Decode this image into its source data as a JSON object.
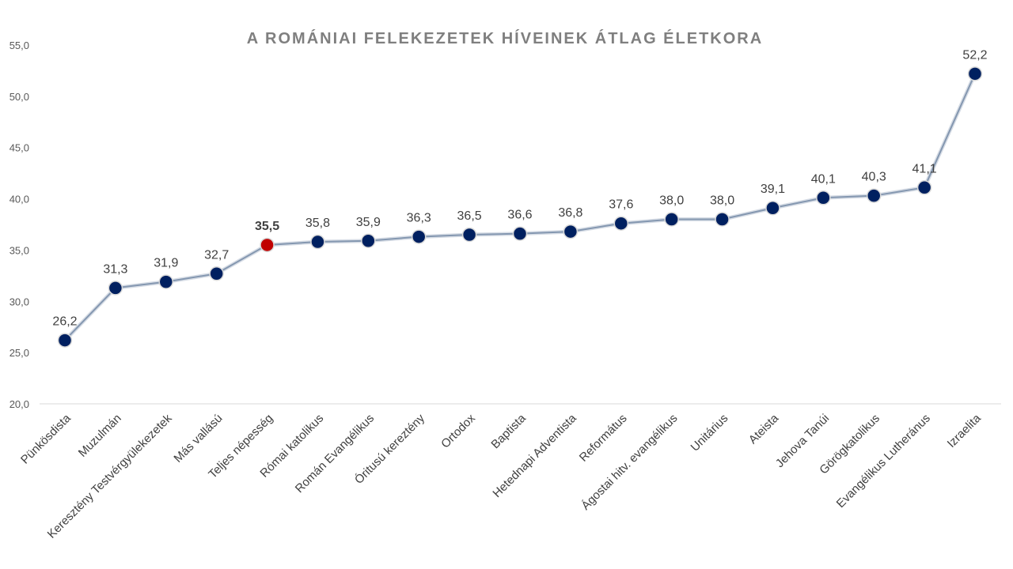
{
  "chart_data": {
    "type": "line",
    "title": "A ROMÁNIAI FELEKEZETEK HÍVEINEK ÁTLAG ÉLETKORA",
    "xlabel": "",
    "ylabel": "",
    "ylim": [
      20,
      55
    ],
    "yticks": [
      "20,0",
      "25,0",
      "30,0",
      "35,0",
      "40,0",
      "45,0",
      "50,0",
      "55,0"
    ],
    "grid": false,
    "categories": [
      "Pünkösdista",
      "Muzulmán",
      "Keresztény Testvérgyülekezetek",
      "Más vallású",
      "Teljes népesség",
      "Római katolikus",
      "Román Evangélikus",
      "Óritusú kereztény",
      "Ortodox",
      "Baptista",
      "Hetednapi Adventista",
      "Református",
      "Ágostai hitv.  evangélikus",
      "Unitárius",
      "Ateista",
      "Jehova Tanúi",
      "Görögkatolikus",
      "Evangélikus Lutheránus",
      "Izraelita"
    ],
    "values": [
      26.2,
      31.3,
      31.9,
      32.7,
      35.5,
      35.8,
      35.9,
      36.3,
      36.5,
      36.6,
      36.8,
      37.6,
      38.0,
      38.0,
      39.1,
      40.1,
      40.3,
      41.1,
      52.2
    ],
    "data_labels": [
      "26,2",
      "31,3",
      "31,9",
      "32,7",
      "35,5",
      "35,8",
      "35,9",
      "36,3",
      "36,5",
      "36,6",
      "36,8",
      "37,6",
      "38,0",
      "38,0",
      "39,1",
      "40,1",
      "40,3",
      "41,1",
      "52,2"
    ],
    "highlight_index": 4,
    "colors": {
      "line": "#8497b0",
      "marker": "#002060",
      "highlight_marker": "#c00000",
      "highlight_label": "#c00000"
    }
  }
}
